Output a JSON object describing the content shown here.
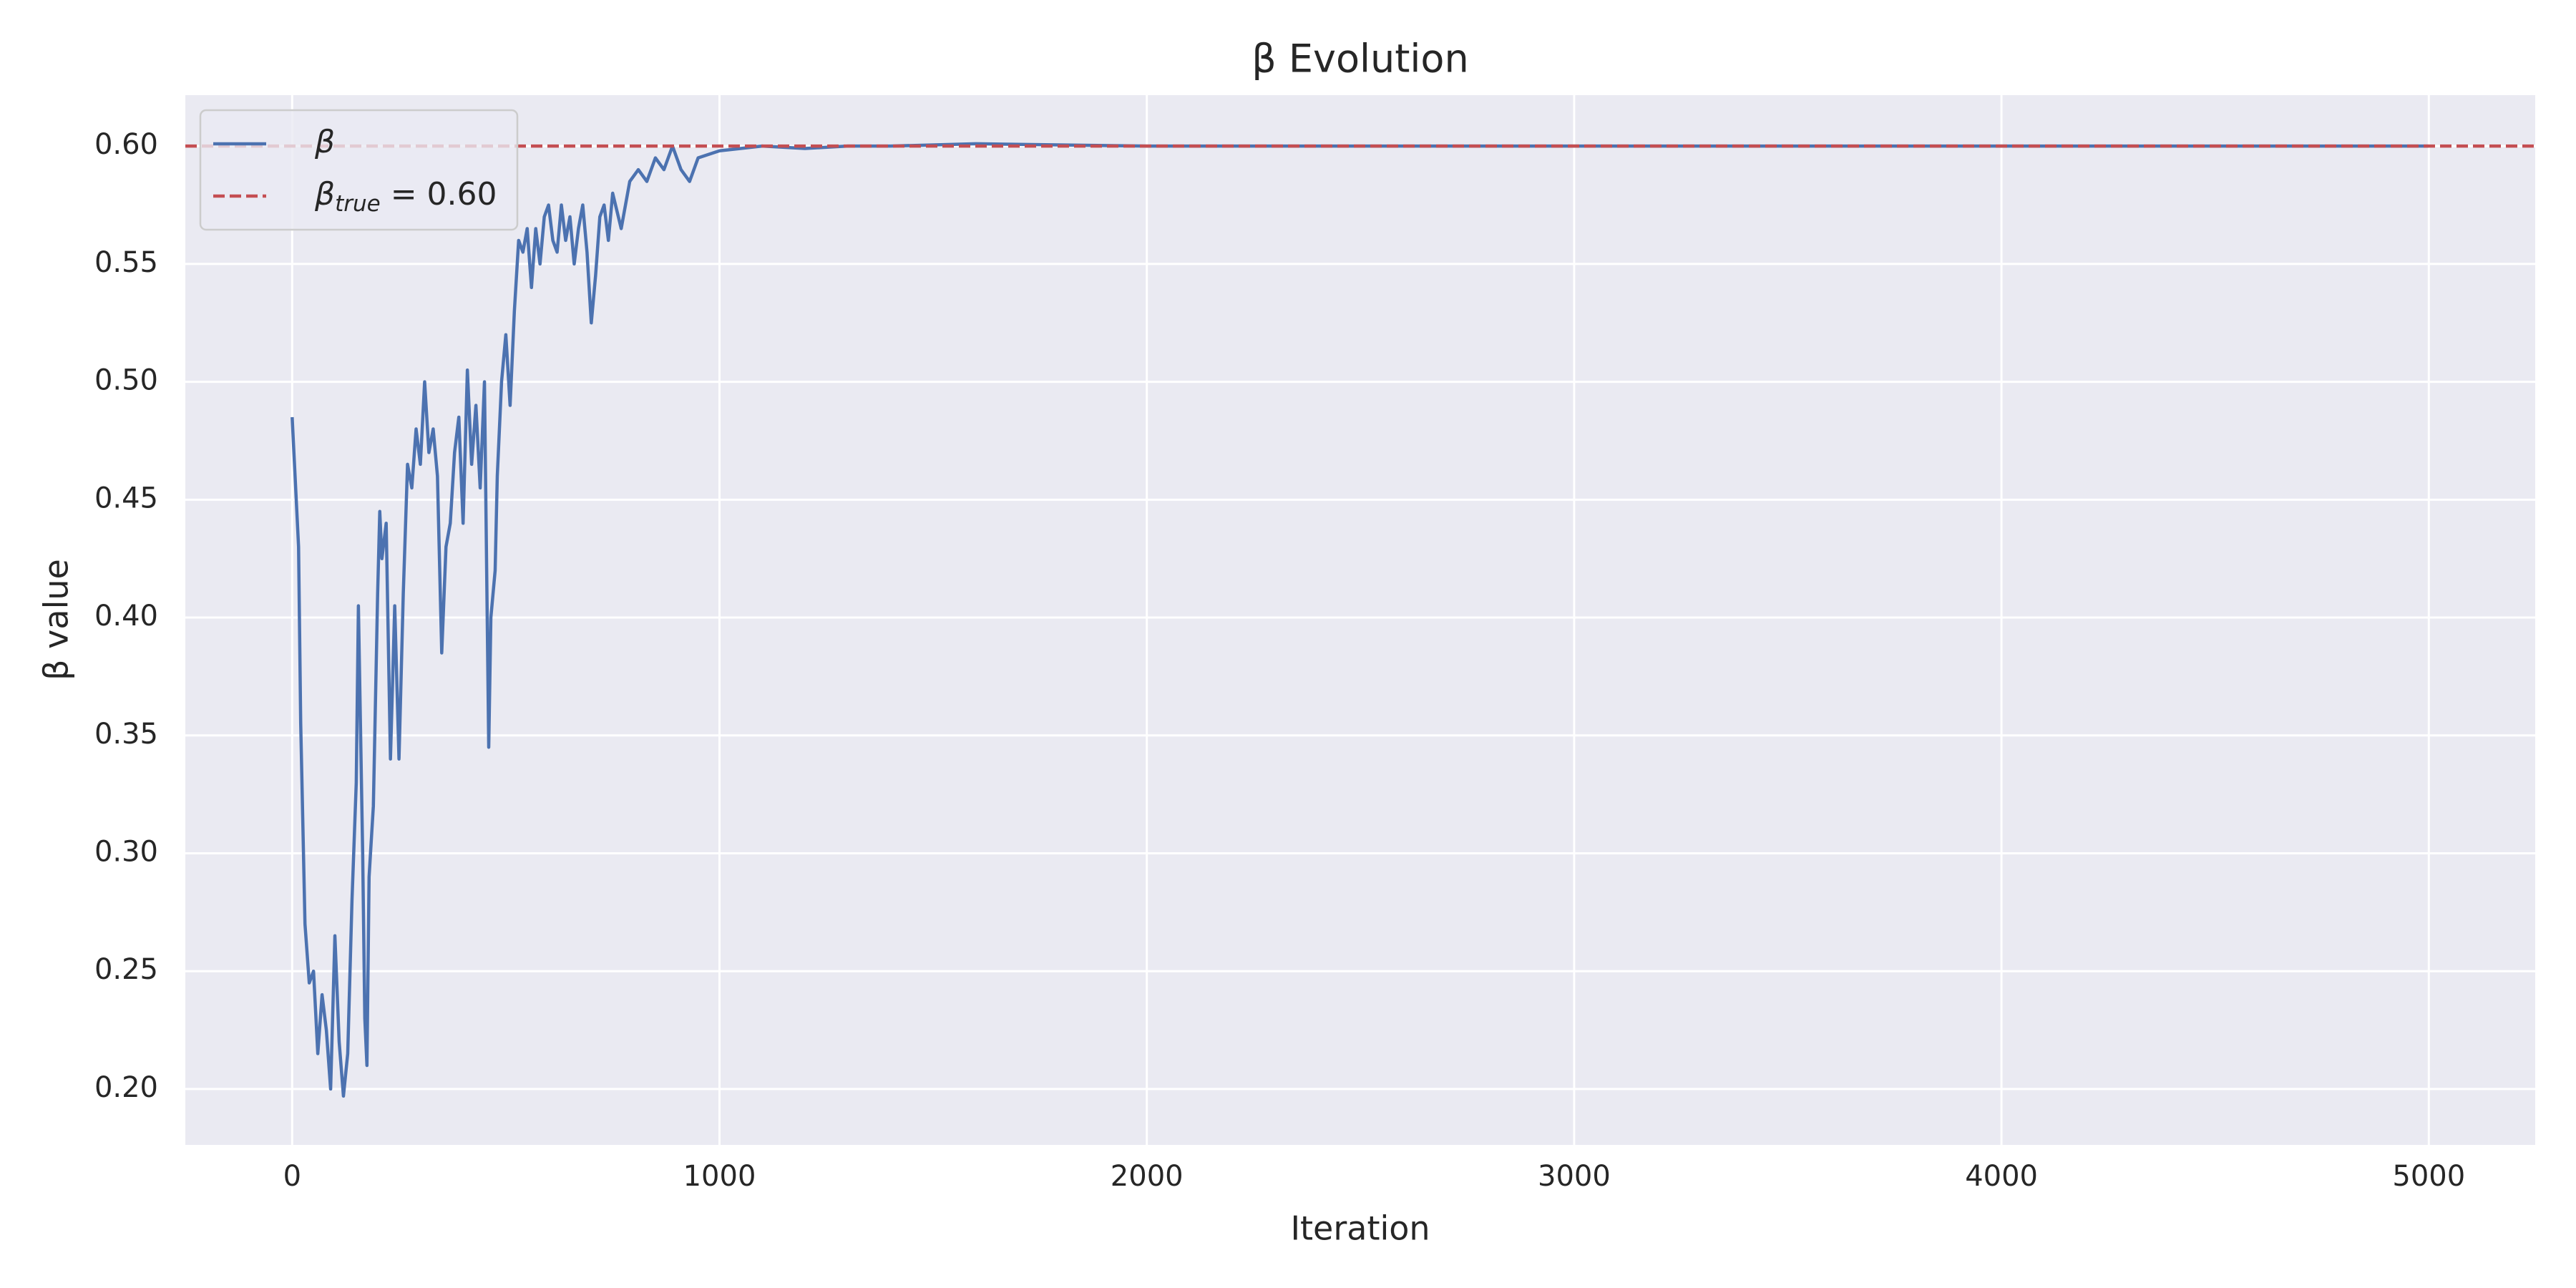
{
  "chart_data": {
    "type": "line",
    "title": "β Evolution",
    "x_label": "Iteration",
    "y_label": "β value",
    "xlim": [
      -250,
      5249
    ],
    "ylim": [
      0.1763,
      0.6216
    ],
    "xticks": [
      0,
      1000,
      2000,
      3000,
      4000,
      5000
    ],
    "yticks": [
      {
        "value": 0.2,
        "label": "0.20"
      },
      {
        "value": 0.25,
        "label": "0.25"
      },
      {
        "value": 0.3,
        "label": "0.30"
      },
      {
        "value": 0.35,
        "label": "0.35"
      },
      {
        "value": 0.4,
        "label": "0.40"
      },
      {
        "value": 0.45,
        "label": "0.45"
      },
      {
        "value": 0.5,
        "label": "0.50"
      },
      {
        "value": 0.55,
        "label": "0.55"
      },
      {
        "value": 0.6,
        "label": "0.60"
      }
    ],
    "grid": true,
    "legend_position": "upper left",
    "series": [
      {
        "name": "β",
        "color": "#4c72b0",
        "x": [
          0,
          15,
          20,
          30,
          40,
          50,
          60,
          70,
          80,
          90,
          100,
          110,
          120,
          130,
          140,
          150,
          155,
          165,
          170,
          175,
          180,
          190,
          200,
          205,
          210,
          220,
          230,
          240,
          250,
          260,
          270,
          280,
          290,
          300,
          310,
          320,
          330,
          340,
          350,
          360,
          370,
          380,
          390,
          400,
          410,
          420,
          430,
          440,
          450,
          460,
          465,
          475,
          480,
          490,
          500,
          510,
          520,
          530,
          540,
          550,
          560,
          570,
          580,
          590,
          600,
          610,
          620,
          630,
          640,
          650,
          660,
          670,
          680,
          690,
          700,
          710,
          720,
          730,
          740,
          750,
          770,
          790,
          810,
          830,
          850,
          870,
          890,
          910,
          930,
          950,
          1000,
          1100,
          1200,
          1300,
          1400,
          1600,
          2000,
          3000,
          4000,
          4999
        ],
        "values": [
          0.485,
          0.43,
          0.355,
          0.27,
          0.245,
          0.25,
          0.215,
          0.24,
          0.225,
          0.2,
          0.265,
          0.22,
          0.197,
          0.215,
          0.28,
          0.33,
          0.405,
          0.3,
          0.23,
          0.21,
          0.29,
          0.32,
          0.41,
          0.445,
          0.425,
          0.44,
          0.34,
          0.405,
          0.34,
          0.41,
          0.465,
          0.455,
          0.48,
          0.465,
          0.5,
          0.47,
          0.48,
          0.46,
          0.385,
          0.43,
          0.44,
          0.47,
          0.485,
          0.44,
          0.505,
          0.465,
          0.49,
          0.455,
          0.5,
          0.345,
          0.4,
          0.42,
          0.46,
          0.5,
          0.52,
          0.49,
          0.53,
          0.56,
          0.555,
          0.565,
          0.54,
          0.565,
          0.55,
          0.57,
          0.575,
          0.56,
          0.555,
          0.575,
          0.56,
          0.57,
          0.55,
          0.565,
          0.575,
          0.555,
          0.525,
          0.545,
          0.57,
          0.575,
          0.56,
          0.58,
          0.565,
          0.585,
          0.59,
          0.585,
          0.595,
          0.59,
          0.6,
          0.59,
          0.585,
          0.595,
          0.598,
          0.6,
          0.599,
          0.6,
          0.6,
          0.601,
          0.6,
          0.6,
          0.6,
          0.6
        ]
      }
    ],
    "reference_line": {
      "value": 0.6,
      "color": "#c44e52",
      "style": "dashed",
      "label_parts": [
        "β",
        "true",
        " = 0.60"
      ]
    }
  }
}
